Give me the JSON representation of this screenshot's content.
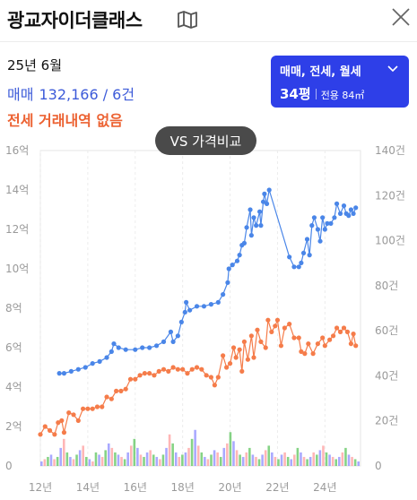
{
  "header": {
    "title": "광교자이더클래스",
    "map_icon": "map-icon",
    "close_icon": "close-icon"
  },
  "summary": {
    "date": "25년 6월",
    "trade_type": "매매",
    "trade_price": "132,166 / 6건",
    "lease_note": "전세 거래내역 없음"
  },
  "filter": {
    "types": "매매, 전세, 월세",
    "size_pyeong": "34평",
    "size_area": "전용 84㎡"
  },
  "compare_button": "VS 가격비교",
  "colors": {
    "trade": "#4a86e8",
    "lease": "#f57c4a",
    "volume_trade": "#8c8cff",
    "volume_lease": "#ff9e9e",
    "volume_rent": "#5cc45c",
    "filter_bg": "#2e3fe8"
  },
  "chart_data": {
    "type": "line",
    "left_axis": {
      "labels": [
        "0",
        "2억",
        "4억",
        "6억",
        "8억",
        "10억",
        "12억",
        "14억",
        "16억"
      ],
      "range": [
        0,
        16
      ]
    },
    "right_axis": {
      "labels": [
        "0",
        "20건",
        "40건",
        "60건",
        "80건",
        "100건",
        "120건",
        "140건"
      ],
      "range": [
        0,
        140
      ]
    },
    "x_labels": [
      "12년",
      "14년",
      "16년",
      "18년",
      "20년",
      "22년",
      "24년"
    ],
    "x_range": [
      2012,
      2025.5
    ],
    "series": [
      {
        "color": "#4a86e8",
        "points": [
          [
            2012.8,
            4.7
          ],
          [
            2013.0,
            4.7
          ],
          [
            2013.3,
            4.8
          ],
          [
            2013.6,
            4.9
          ],
          [
            2013.9,
            5.0
          ],
          [
            2014.2,
            5.2
          ],
          [
            2014.5,
            5.3
          ],
          [
            2014.8,
            5.5
          ],
          [
            2015.0,
            5.8
          ],
          [
            2015.1,
            6.2
          ],
          [
            2015.3,
            6.0
          ],
          [
            2015.6,
            5.9
          ],
          [
            2016.0,
            5.9
          ],
          [
            2016.3,
            6.0
          ],
          [
            2016.6,
            6.0
          ],
          [
            2016.9,
            6.1
          ],
          [
            2017.2,
            6.3
          ],
          [
            2017.5,
            6.8
          ],
          [
            2017.6,
            6.3
          ],
          [
            2017.8,
            6.6
          ],
          [
            2017.95,
            7.3
          ],
          [
            2018.1,
            7.8
          ],
          [
            2018.15,
            8.3
          ],
          [
            2018.3,
            7.9
          ],
          [
            2018.6,
            8.1
          ],
          [
            2018.9,
            8.1
          ],
          [
            2019.2,
            8.2
          ],
          [
            2019.5,
            8.3
          ],
          [
            2019.7,
            8.7
          ],
          [
            2019.9,
            9.3
          ],
          [
            2019.95,
            10.0
          ],
          [
            2020.1,
            10.2
          ],
          [
            2020.3,
            10.4
          ],
          [
            2020.4,
            10.7
          ],
          [
            2020.5,
            11.2
          ],
          [
            2020.6,
            11.3
          ],
          [
            2020.7,
            12.1
          ],
          [
            2020.85,
            13.0
          ],
          [
            2020.9,
            11.7
          ],
          [
            2021.0,
            12.6
          ],
          [
            2021.1,
            12.2
          ],
          [
            2021.25,
            12.9
          ],
          [
            2021.3,
            12.2
          ],
          [
            2021.4,
            13.4
          ],
          [
            2021.45,
            13.8
          ],
          [
            2021.55,
            13.3
          ],
          [
            2021.65,
            14.0
          ],
          [
            2022.5,
            10.6
          ],
          [
            2022.7,
            10.1
          ],
          [
            2022.9,
            10.1
          ],
          [
            2023.0,
            10.3
          ],
          [
            2023.1,
            10.8
          ],
          [
            2023.25,
            11.5
          ],
          [
            2023.35,
            10.7
          ],
          [
            2023.45,
            12.2
          ],
          [
            2023.55,
            12.6
          ],
          [
            2023.7,
            12.0
          ],
          [
            2023.8,
            11.4
          ],
          [
            2023.9,
            12.6
          ],
          [
            2024.0,
            12.0
          ],
          [
            2024.1,
            12.3
          ],
          [
            2024.25,
            12.3
          ],
          [
            2024.4,
            12.6
          ],
          [
            2024.5,
            13.3
          ],
          [
            2024.65,
            12.8
          ],
          [
            2024.8,
            13.2
          ],
          [
            2024.9,
            12.8
          ],
          [
            2025.0,
            12.7
          ],
          [
            2025.1,
            13.0
          ],
          [
            2025.2,
            12.8
          ],
          [
            2025.3,
            13.1
          ]
        ]
      },
      {
        "color": "#f57c4a",
        "points": [
          [
            2012.0,
            1.6
          ],
          [
            2012.2,
            2.0
          ],
          [
            2012.4,
            1.8
          ],
          [
            2012.6,
            1.6
          ],
          [
            2012.75,
            2.2
          ],
          [
            2012.9,
            2.3
          ],
          [
            2013.0,
            1.7
          ],
          [
            2013.2,
            2.7
          ],
          [
            2013.4,
            2.6
          ],
          [
            2013.6,
            2.3
          ],
          [
            2013.8,
            2.9
          ],
          [
            2014.0,
            2.9
          ],
          [
            2014.2,
            2.9
          ],
          [
            2014.4,
            3.0
          ],
          [
            2014.6,
            3.0
          ],
          [
            2014.8,
            3.5
          ],
          [
            2015.0,
            3.4
          ],
          [
            2015.2,
            3.8
          ],
          [
            2015.4,
            3.8
          ],
          [
            2015.6,
            3.9
          ],
          [
            2015.8,
            4.4
          ],
          [
            2016.0,
            4.4
          ],
          [
            2016.2,
            4.6
          ],
          [
            2016.4,
            4.7
          ],
          [
            2016.6,
            4.7
          ],
          [
            2016.8,
            4.6
          ],
          [
            2017.0,
            4.8
          ],
          [
            2017.2,
            4.9
          ],
          [
            2017.4,
            4.8
          ],
          [
            2017.6,
            5.0
          ],
          [
            2017.8,
            4.9
          ],
          [
            2018.0,
            4.9
          ],
          [
            2018.2,
            4.7
          ],
          [
            2018.4,
            4.9
          ],
          [
            2018.6,
            5.0
          ],
          [
            2018.8,
            4.9
          ],
          [
            2019.0,
            4.6
          ],
          [
            2019.2,
            4.5
          ],
          [
            2019.35,
            4.1
          ],
          [
            2019.5,
            4.5
          ],
          [
            2019.7,
            5.6
          ],
          [
            2019.85,
            5.0
          ],
          [
            2020.0,
            5.2
          ],
          [
            2020.15,
            6.0
          ],
          [
            2020.25,
            5.5
          ],
          [
            2020.4,
            5.9
          ],
          [
            2020.5,
            4.8
          ],
          [
            2020.6,
            6.3
          ],
          [
            2020.75,
            5.4
          ],
          [
            2020.9,
            6.6
          ],
          [
            2021.0,
            5.5
          ],
          [
            2021.15,
            6.9
          ],
          [
            2021.3,
            6.3
          ],
          [
            2021.5,
            6.0
          ],
          [
            2021.6,
            7.4
          ],
          [
            2021.75,
            6.8
          ],
          [
            2021.9,
            7.1
          ],
          [
            2022.0,
            7.4
          ],
          [
            2022.15,
            6.1
          ],
          [
            2022.3,
            7.0
          ],
          [
            2022.5,
            7.2
          ],
          [
            2022.7,
            6.5
          ],
          [
            2022.9,
            6.5
          ],
          [
            2023.0,
            5.8
          ],
          [
            2023.15,
            5.7
          ],
          [
            2023.3,
            6.2
          ],
          [
            2023.5,
            5.7
          ],
          [
            2023.7,
            6.2
          ],
          [
            2023.9,
            6.5
          ],
          [
            2024.0,
            6.1
          ],
          [
            2024.2,
            6.4
          ],
          [
            2024.35,
            6.6
          ],
          [
            2024.5,
            7.0
          ],
          [
            2024.65,
            6.8
          ],
          [
            2024.8,
            7.0
          ],
          [
            2024.95,
            6.8
          ],
          [
            2025.1,
            6.2
          ],
          [
            2025.2,
            6.7
          ],
          [
            2025.3,
            6.1
          ]
        ]
      }
    ],
    "volume_counts": [
      2,
      3,
      4,
      5,
      3,
      4,
      8,
      12,
      6,
      4,
      3,
      5,
      7,
      9,
      4,
      3,
      2,
      6,
      5,
      4,
      7,
      10,
      8,
      6,
      5,
      4,
      3,
      6,
      9,
      12,
      8,
      5,
      4,
      6,
      7,
      5,
      4,
      3,
      5,
      8,
      14,
      10,
      6,
      4,
      5,
      6,
      8,
      12,
      16,
      9,
      6,
      4,
      3,
      5,
      7,
      6,
      4,
      8,
      10,
      15,
      11,
      7,
      5,
      4,
      6,
      8,
      5,
      4,
      3,
      5,
      7,
      9,
      6,
      4,
      3,
      5,
      6,
      4,
      3,
      5,
      8,
      6,
      4,
      3,
      4,
      6,
      5,
      7,
      9,
      6,
      5,
      4,
      3,
      4,
      6,
      8,
      5,
      4,
      3,
      2
    ]
  }
}
